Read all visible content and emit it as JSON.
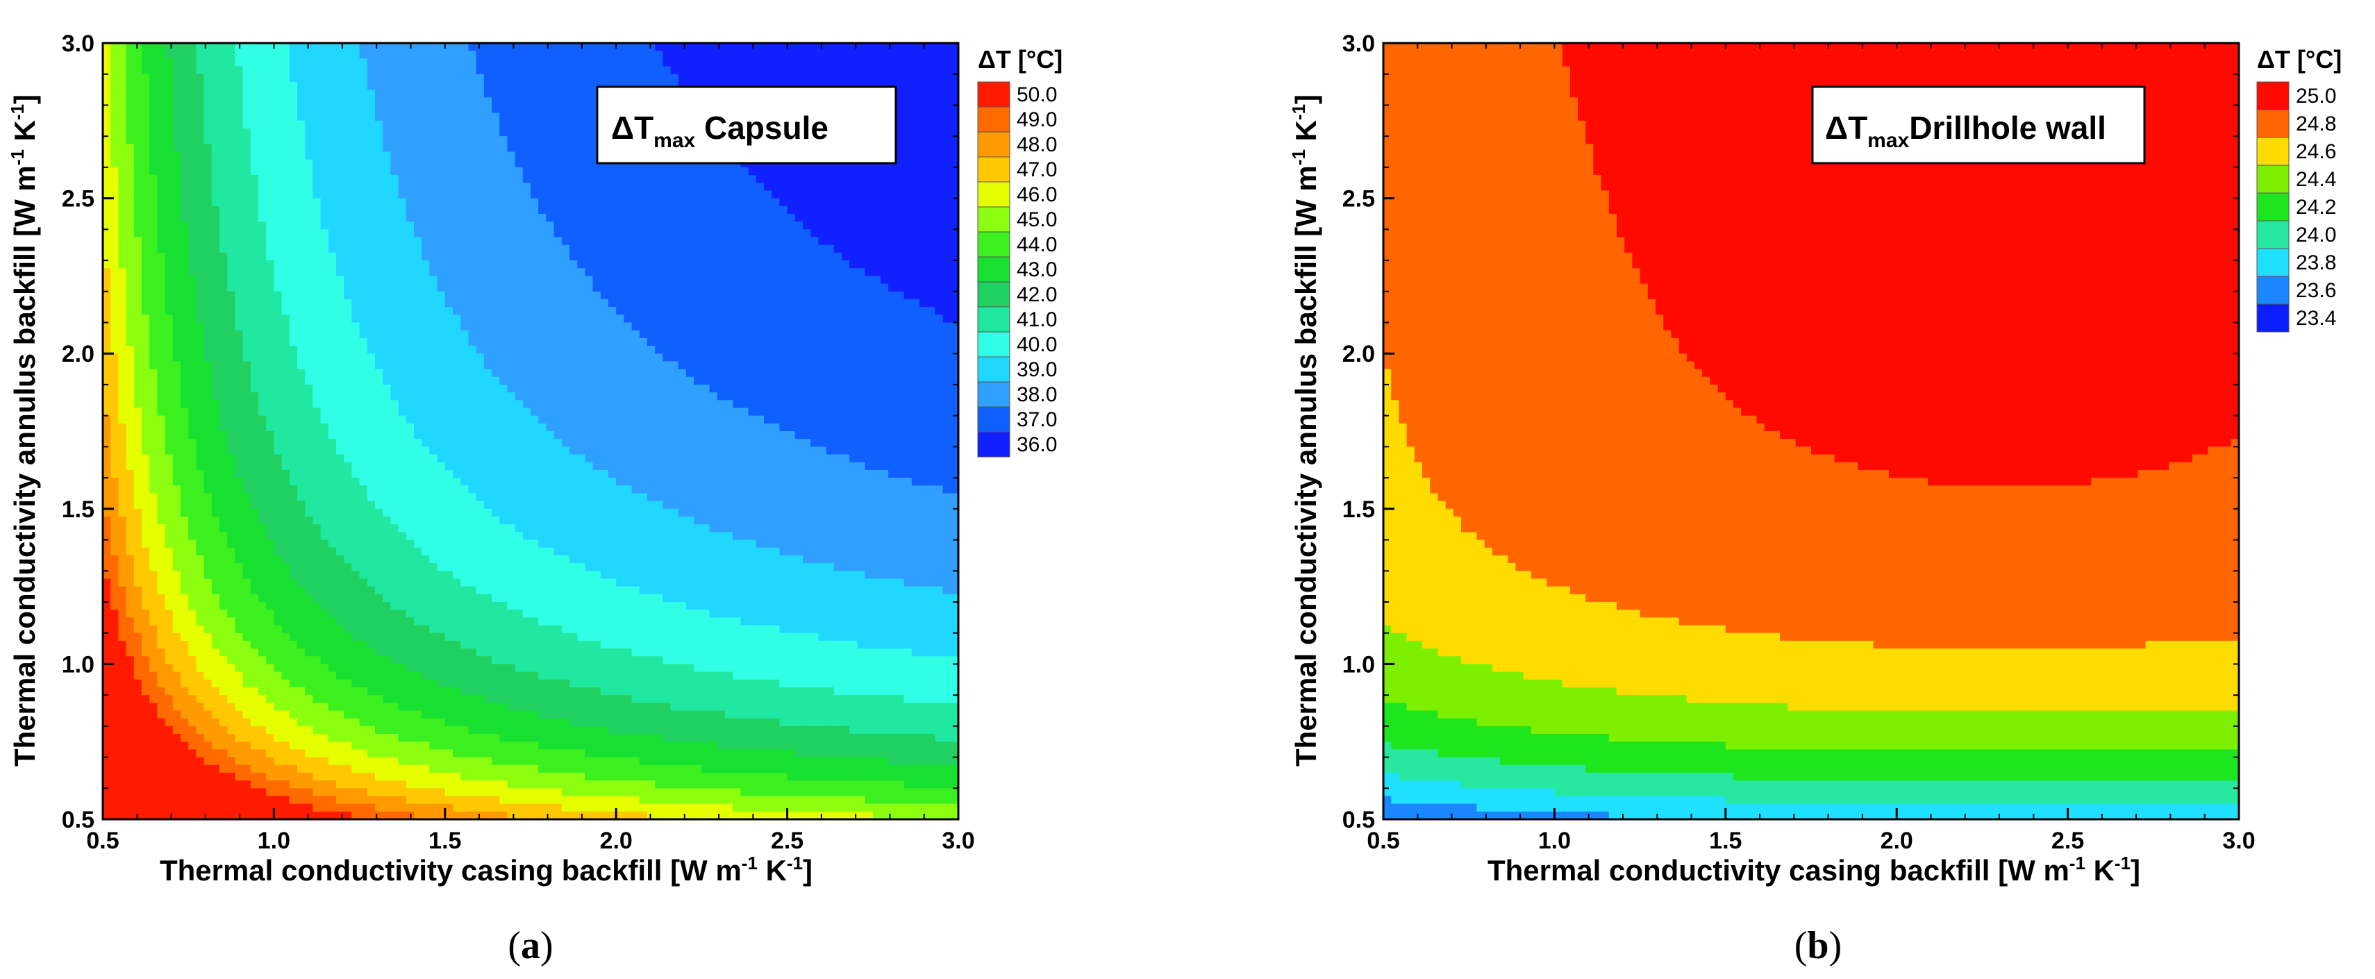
{
  "chart_data": [
    {
      "type": "heatmap",
      "panel": "a",
      "caption_prefix": "(",
      "caption_letter": "a",
      "caption_suffix": ")",
      "title_main": "ΔT",
      "title_sub": "max",
      "title_rest": " Capsule",
      "xlabel": "Thermal conductivity casing backfill [W m",
      "ylabel": "Thermal conductivity annulus backfill [W m",
      "unit_exp1": "-1",
      "unit_mid": " K",
      "unit_exp2": "-1",
      "unit_end": "]",
      "xlim": [
        0.5,
        3.0
      ],
      "ylim": [
        0.5,
        3.0
      ],
      "xticks": [
        "0.5",
        "1.0",
        "1.5",
        "2.0",
        "2.5",
        "3.0"
      ],
      "yticks": [
        "0.5",
        "1.0",
        "1.5",
        "2.0",
        "2.5",
        "3.0"
      ],
      "legend_title": "ΔT [°C]",
      "legend_levels": [
        "50.0",
        "49.0",
        "48.0",
        "47.0",
        "46.0",
        "45.0",
        "44.0",
        "43.0",
        "42.0",
        "41.0",
        "40.0",
        "39.0",
        "38.0",
        "37.0",
        "36.0"
      ],
      "legend_colors": [
        "#ff1a00",
        "#ff6a00",
        "#ff9a00",
        "#ffc800",
        "#e6ff00",
        "#8cff10",
        "#3cf020",
        "#18e030",
        "#20d060",
        "#20e8a0",
        "#30ffe6",
        "#20d8ff",
        "#30a0ff",
        "#1060ff",
        "#1020ff"
      ],
      "contour_levels": [
        36,
        37,
        38,
        39,
        40,
        41,
        42,
        43,
        44,
        45,
        46,
        47,
        48,
        49,
        50
      ],
      "model": "capsule"
    },
    {
      "type": "heatmap",
      "panel": "b",
      "caption_prefix": "(",
      "caption_letter": "b",
      "caption_suffix": ")",
      "title_main": "ΔT",
      "title_sub": "max",
      "title_rest": "Drillhole wall",
      "xlabel": "Thermal conductivity casing backfill [W m",
      "ylabel": "Thermal conductivity annulus backfill [W m",
      "unit_exp1": "-1",
      "unit_mid": " K",
      "unit_exp2": "-1",
      "unit_end": "]",
      "xlim": [
        0.5,
        3.0
      ],
      "ylim": [
        0.5,
        3.0
      ],
      "xticks": [
        "0.5",
        "1.0",
        "1.5",
        "2.0",
        "2.5",
        "3.0"
      ],
      "yticks": [
        "0.5",
        "1.0",
        "1.5",
        "2.0",
        "2.5",
        "3.0"
      ],
      "legend_title": "ΔT [°C]",
      "legend_levels": [
        "25.0",
        "24.8",
        "24.6",
        "24.4",
        "24.2",
        "24.0",
        "23.8",
        "23.6",
        "23.4"
      ],
      "legend_colors": [
        "#ff0a00",
        "#ff6600",
        "#ffdc00",
        "#7cf000",
        "#1ee61e",
        "#28e8a0",
        "#20e0ff",
        "#1a86ff",
        "#0a1eff"
      ],
      "contour_levels": [
        23.4,
        23.6,
        23.8,
        24.0,
        24.2,
        24.4,
        24.6,
        24.8,
        25.0
      ],
      "model": "drillhole"
    }
  ]
}
